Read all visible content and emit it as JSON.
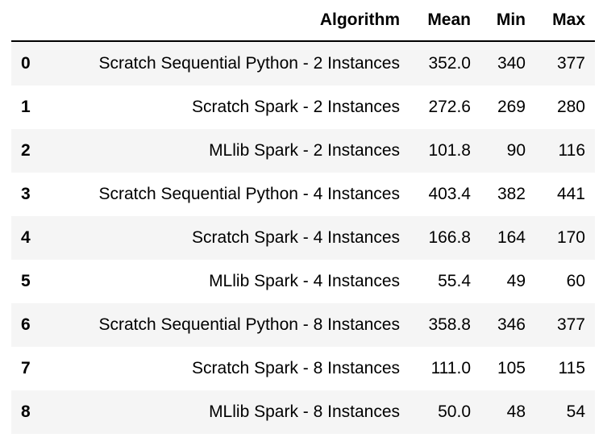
{
  "table": {
    "columns": [
      "",
      "Algorithm",
      "Mean",
      "Min",
      "Max"
    ],
    "rows": [
      {
        "index": "0",
        "algorithm": "Scratch Sequential Python - 2 Instances",
        "mean": "352.0",
        "min": "340",
        "max": "377"
      },
      {
        "index": "1",
        "algorithm": "Scratch Spark - 2 Instances",
        "mean": "272.6",
        "min": "269",
        "max": "280"
      },
      {
        "index": "2",
        "algorithm": "MLlib Spark - 2 Instances",
        "mean": "101.8",
        "min": "90",
        "max": "116"
      },
      {
        "index": "3",
        "algorithm": "Scratch Sequential Python - 4 Instances",
        "mean": "403.4",
        "min": "382",
        "max": "441"
      },
      {
        "index": "4",
        "algorithm": "Scratch Spark - 4 Instances",
        "mean": "166.8",
        "min": "164",
        "max": "170"
      },
      {
        "index": "5",
        "algorithm": "MLlib Spark - 4 Instances",
        "mean": "55.4",
        "min": "49",
        "max": "60"
      },
      {
        "index": "6",
        "algorithm": "Scratch Sequential Python - 8 Instances",
        "mean": "358.8",
        "min": "346",
        "max": "377"
      },
      {
        "index": "7",
        "algorithm": "Scratch Spark - 8 Instances",
        "mean": "111.0",
        "min": "105",
        "max": "115"
      },
      {
        "index": "8",
        "algorithm": "MLlib Spark - 8 Instances",
        "mean": "50.0",
        "min": "48",
        "max": "54"
      }
    ]
  },
  "colors": {
    "stripe": "#f5f5f5",
    "background": "#ffffff",
    "text": "#000000"
  }
}
